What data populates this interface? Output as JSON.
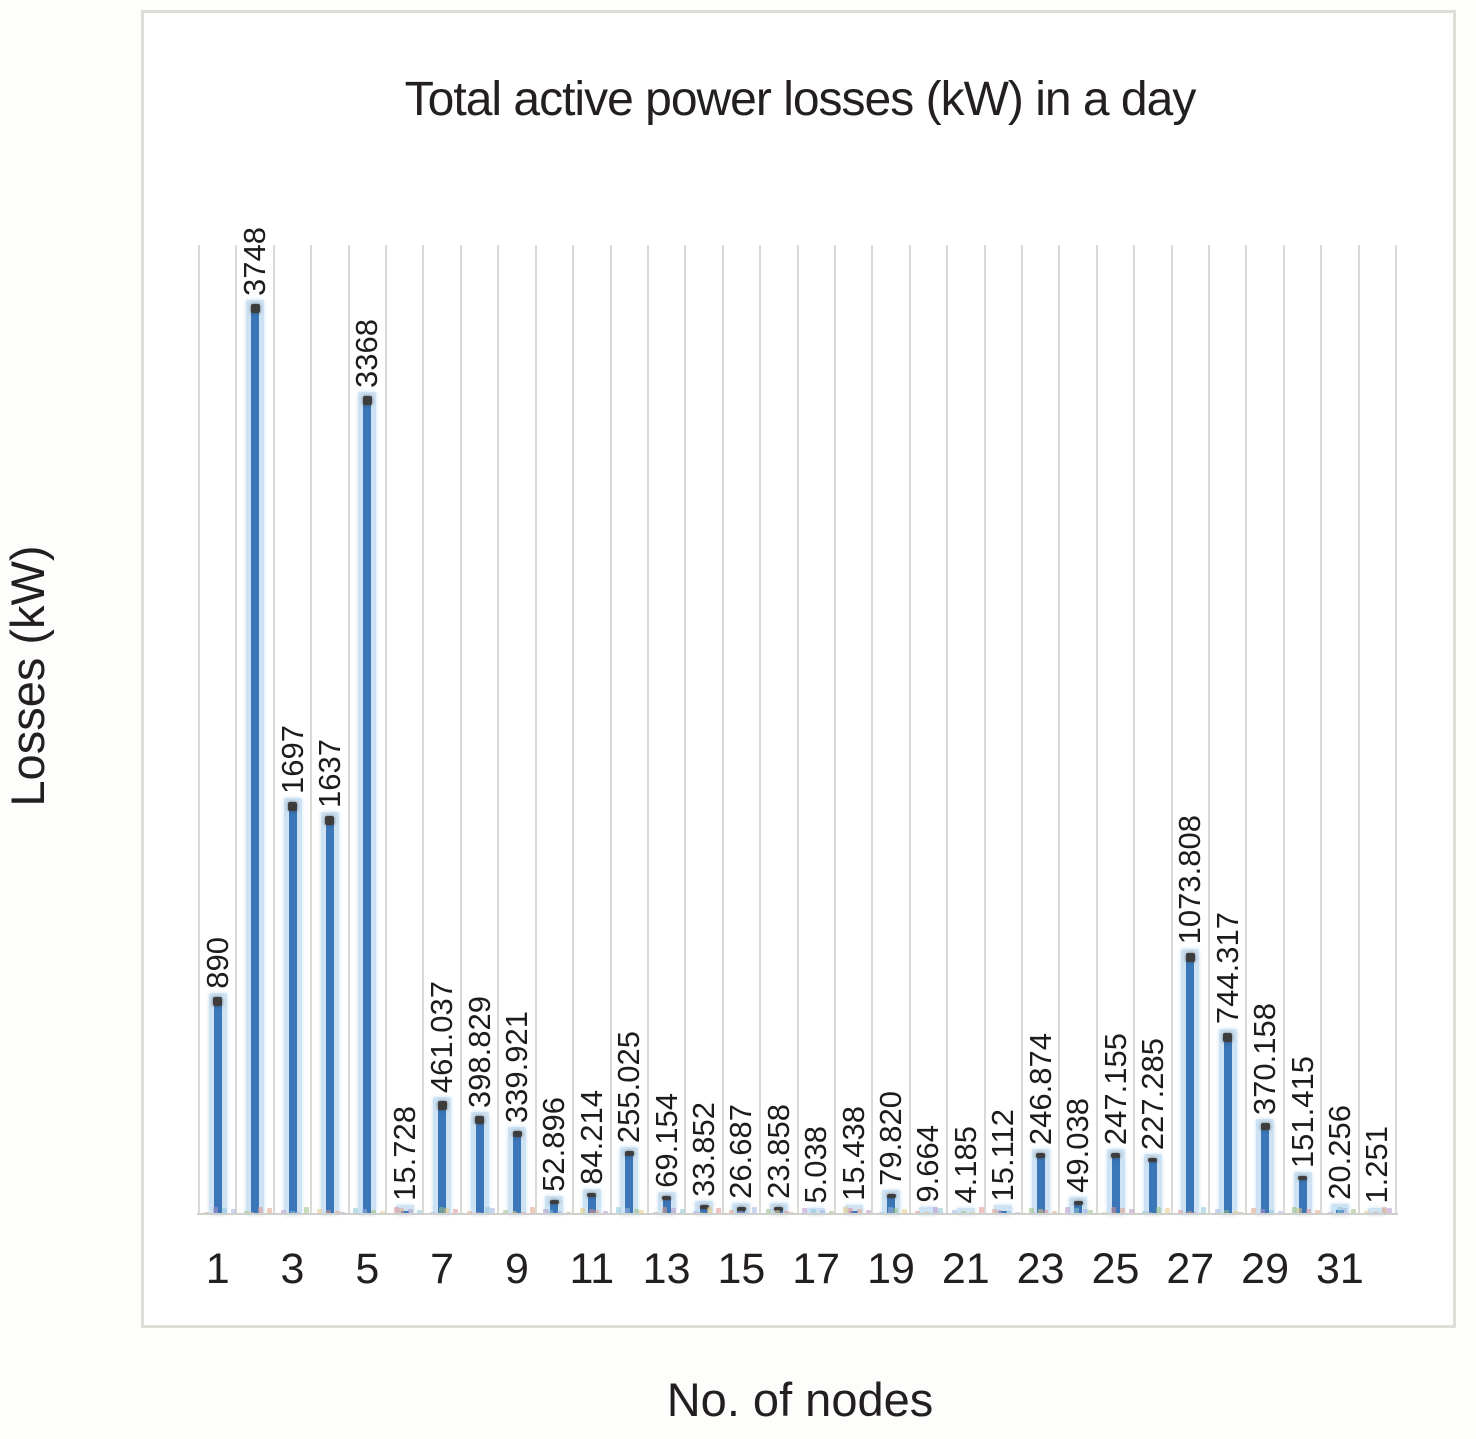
{
  "chart_data": {
    "type": "bar",
    "title": "Total active power losses (kW) in a day",
    "xlabel": "No. of nodes",
    "ylabel": "Losses (kW)",
    "categories": [
      1,
      2,
      3,
      4,
      5,
      6,
      7,
      8,
      9,
      10,
      11,
      12,
      13,
      14,
      15,
      16,
      17,
      18,
      19,
      20,
      21,
      22,
      23,
      24,
      25,
      26,
      27,
      28,
      29,
      30,
      31,
      32
    ],
    "values": [
      890,
      3748,
      1697,
      1637,
      3368,
      15.728,
      461.037,
      398.829,
      339.921,
      52.896,
      84.214,
      255.025,
      69.154,
      33.852,
      26.687,
      23.858,
      5.038,
      15.438,
      79.82,
      9.664,
      4.185,
      15.112,
      246.874,
      49.038,
      247.155,
      227.285,
      1073.808,
      744.317,
      370.158,
      151.415,
      20.256,
      1.251
    ],
    "value_labels": [
      "890",
      "3748",
      "1697",
      "1637",
      "3368",
      "15.728",
      "461.037",
      "398.829",
      "339.921",
      "52.896",
      "84.214",
      "255.025",
      "69.154",
      "33.852",
      "26.687",
      "23.858",
      "5.038",
      "15.438",
      "79.820",
      "9.664",
      "4.185",
      "15.112",
      "246.874",
      "49.038",
      "247.155",
      "227.285",
      "1073.808",
      "744.317",
      "370.158",
      "151.415",
      "20.256",
      "1.251"
    ],
    "x_tick_labels": [
      "1",
      "3",
      "5",
      "7",
      "9",
      "11",
      "13",
      "15",
      "17",
      "19",
      "21",
      "23",
      "25",
      "27",
      "29",
      "31"
    ],
    "ylim": [
      0,
      4000
    ],
    "grid": "vertical category separators only; no y-axis tick labels; no horizontal gridlines",
    "legend": "none",
    "bar_color": "#3a76b8",
    "bar_halo_color": "#cde2f3",
    "bar_cap_color": "#3d3d3d",
    "gridline_color": "#d9d9d6",
    "frame_border_color": "#deded9",
    "text_color": "#231f20",
    "artifact_palette": [
      "#e0a183",
      "#97bd80",
      "#b594c9",
      "#e6c97c",
      "#8ac4d6",
      "#dd9090",
      "#9fb3e0"
    ]
  }
}
